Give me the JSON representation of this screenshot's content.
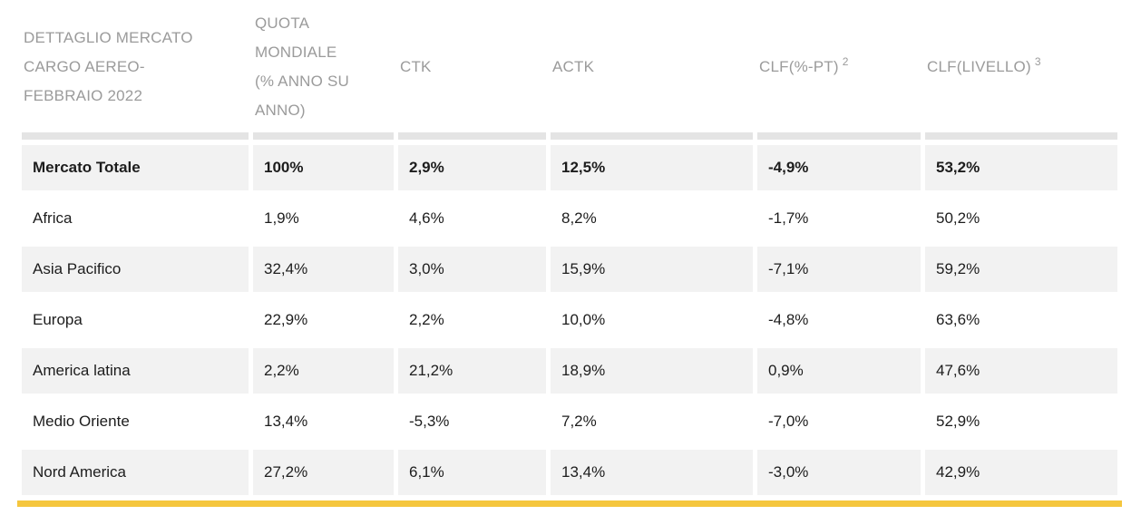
{
  "colors": {
    "accent": "#F5C63E",
    "row-shade": "#F2F2F2",
    "strip": "#E4E4E4",
    "header-text": "#9B9B9B",
    "body-text": "#1D1D1D"
  },
  "chart_data": {
    "type": "table",
    "title": "DETTAGLIO MERCATO CARGO AEREO-FEBBRAIO 2022",
    "columns": [
      {
        "label": "DETTAGLIO MERCATO CARGO AEREO-FEBBRAIO 2022",
        "sup": ""
      },
      {
        "label": "QUOTA MONDIALE (% ANNO SU ANNO)",
        "sup": ""
      },
      {
        "label": "CTK",
        "sup": ""
      },
      {
        "label": "ACTK",
        "sup": ""
      },
      {
        "label": "CLF(%-PT)",
        "sup": "2"
      },
      {
        "label": "CLF(LIVELLO)",
        "sup": "3"
      }
    ],
    "rows": [
      {
        "label": "Mercato Totale",
        "values": [
          "100%",
          "2,9%",
          "12,5%",
          "-4,9%",
          "53,2%"
        ]
      },
      {
        "label": "Africa",
        "values": [
          "1,9%",
          "4,6%",
          "8,2%",
          "-1,7%",
          "50,2%"
        ]
      },
      {
        "label": "Asia Pacifico",
        "values": [
          "32,4%",
          "3,0%",
          "15,9%",
          "-7,1%",
          "59,2%"
        ]
      },
      {
        "label": "Europa",
        "values": [
          "22,9%",
          "2,2%",
          "10,0%",
          "-4,8%",
          "63,6%"
        ]
      },
      {
        "label": "America latina",
        "values": [
          "2,2%",
          "21,2%",
          "18,9%",
          "0,9%",
          "47,6%"
        ]
      },
      {
        "label": "Medio Oriente",
        "values": [
          "13,4%",
          "-5,3%",
          "7,2%",
          "-7,0%",
          "52,9%"
        ]
      },
      {
        "label": "Nord America",
        "values": [
          "27,2%",
          "6,1%",
          "13,4%",
          "-3,0%",
          "42,9%"
        ]
      }
    ]
  }
}
